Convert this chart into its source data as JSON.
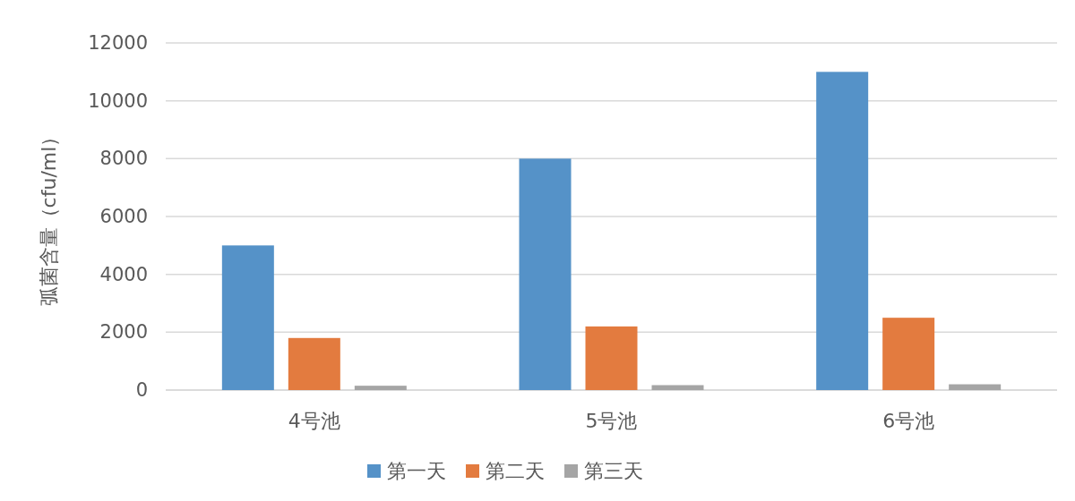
{
  "chart_data": {
    "type": "bar",
    "ylabel": "弧菌含量（cfu/ml）",
    "categories": [
      "4号池",
      "5号池",
      "6号池"
    ],
    "series": [
      {
        "name": "第一天",
        "color": "#5592c8",
        "values": [
          5000,
          8000,
          11000
        ]
      },
      {
        "name": "第二天",
        "color": "#e37b3f",
        "values": [
          1800,
          2200,
          2500
        ]
      },
      {
        "name": "第三天",
        "color": "#a5a5a5",
        "values": [
          150,
          170,
          200
        ]
      }
    ],
    "ylim": [
      0,
      12000
    ],
    "yticks": [
      0,
      2000,
      4000,
      6000,
      8000,
      10000,
      12000
    ],
    "grid": "y",
    "legend": "bottom"
  }
}
